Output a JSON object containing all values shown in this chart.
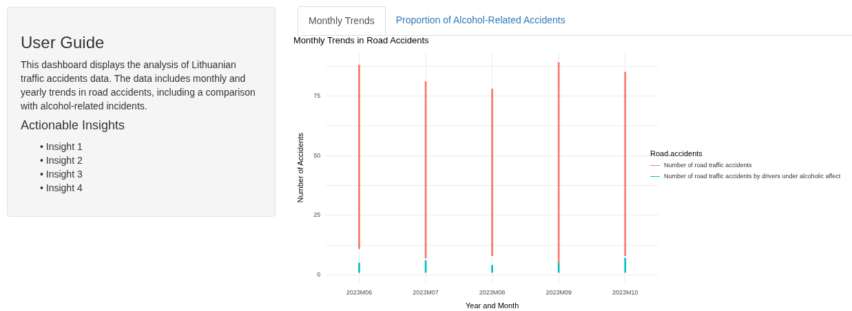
{
  "chart_data": [
    {
      "type": "other",
      "title": "User Guide",
      "subtitle": "This dashboard displays the analysis of Lithuanian traffic accidents data. The data includes monthly and yearly trends in road accidents, including a comparison with alcohol-related incidents.",
      "annotations": [
        "Actionable Insights",
        "• Insight 1",
        "• Insight 2",
        "• Insight 3",
        "• Insight 4"
      ]
    },
    {
      "type": "other",
      "annotations": [
        "Monthly Trends",
        "Proportion of Alcohol-Related Accidents"
      ]
    },
    {
      "type": "bar",
      "title": "Monthly Trends in Road Accidents",
      "xlabel": "Year and Month",
      "ylabel": "Number of Accidents",
      "legend_title": "Road.accidents",
      "categories": [
        "2023M06",
        "2023M07",
        "2023M08",
        "2023M09",
        "2023M10"
      ],
      "series": [
        {
          "name": "Number of road traffic accidents",
          "color": "#f8766d",
          "base": [
            11,
            7,
            8,
            5,
            8
          ],
          "values": [
            77,
            74,
            70,
            84,
            77
          ]
        },
        {
          "name": "Number of road traffic accidents by drivers under alcoholic affect",
          "color": "#00bfc4",
          "base": [
            1,
            1,
            1,
            1,
            1
          ],
          "values": [
            4,
            5,
            3,
            4,
            6
          ]
        }
      ],
      "ylim": [
        -3.6,
        93.4
      ],
      "yticks": [
        0,
        {
          "value": 12.5,
          "label": null
        },
        25,
        {
          "value": 37.5,
          "label": null
        },
        50,
        {
          "value": 62.5,
          "label": null
        },
        75,
        {
          "value": 87.5,
          "label": null
        }
      ],
      "grid": true,
      "legend": "right"
    }
  ]
}
